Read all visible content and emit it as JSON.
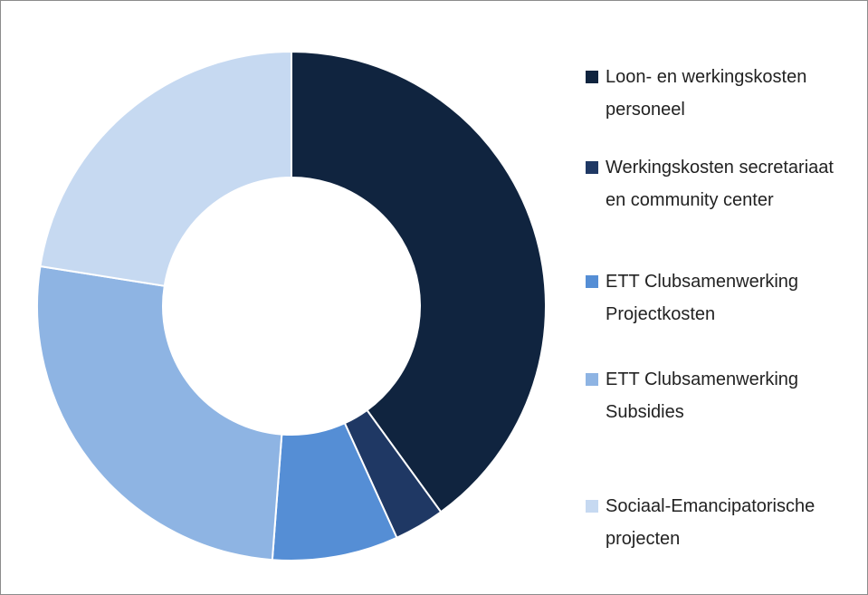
{
  "chart_data": {
    "type": "pie",
    "donut": true,
    "categories": [
      "Loon- en werkingskosten personeel",
      "Werkingskosten secretariaat en community center",
      "ETT Clubsamenwerking Projectkosten",
      "ETT Clubsamenwerking Subsidies",
      "Sociaal-Emancipatorische projecten"
    ],
    "values": [
      40,
      3.2,
      8,
      26.3,
      22.5
    ],
    "colors": [
      "#10243f",
      "#1f3864",
      "#558ed5",
      "#8eb4e3",
      "#c6d9f1"
    ],
    "legend": "right"
  }
}
